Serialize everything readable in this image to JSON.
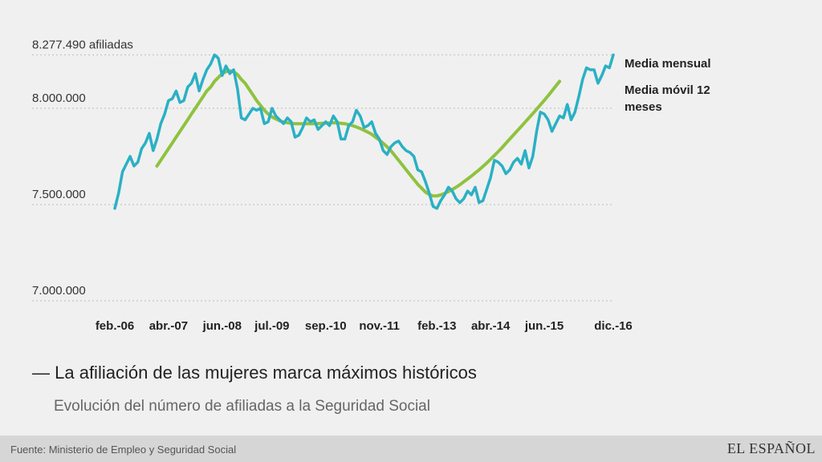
{
  "chart_data": {
    "type": "line",
    "title": "La afiliación de las mujeres marca máximos históricos",
    "title_prefix": "—",
    "subtitle": "Evolución del número de afiliadas a la Seguridad Social",
    "y_ticks": [
      {
        "value": 8277490,
        "label": "8.277.490 afiliadas"
      },
      {
        "value": 8000000,
        "label": "8.000.000"
      },
      {
        "value": 7500000,
        "label": "7.500.000"
      },
      {
        "value": 7000000,
        "label": "7.000.000"
      }
    ],
    "ylim": [
      7000000,
      8277490
    ],
    "x_ticks": [
      "feb.-06",
      "abr.-07",
      "jun.-08",
      "jul.-09",
      "sep.-10",
      "nov.-11",
      "feb.-13",
      "abr.-14",
      "jun.-15",
      "dic.-16"
    ],
    "x_tick_index": [
      0,
      14,
      28,
      41,
      55,
      69,
      84,
      98,
      112,
      130
    ],
    "grid": true,
    "legend_placement": "right, at line ends",
    "series": [
      {
        "name": "Media mensual",
        "color": "#2ab0c5",
        "start_index": 0,
        "values": [
          7480000,
          7560000,
          7670000,
          7710000,
          7750000,
          7700000,
          7720000,
          7790000,
          7820000,
          7870000,
          7780000,
          7840000,
          7920000,
          7970000,
          8040000,
          8050000,
          8090000,
          8030000,
          8040000,
          8110000,
          8130000,
          8180000,
          8090000,
          8150000,
          8200000,
          8230000,
          8277490,
          8260000,
          8170000,
          8220000,
          8180000,
          8200000,
          8100000,
          7950000,
          7940000,
          7970000,
          8000000,
          7990000,
          8000000,
          7920000,
          7930000,
          8000000,
          7960000,
          7940000,
          7920000,
          7950000,
          7930000,
          7850000,
          7860000,
          7900000,
          7950000,
          7930000,
          7940000,
          7890000,
          7910000,
          7930000,
          7910000,
          7960000,
          7930000,
          7840000,
          7840000,
          7910000,
          7930000,
          7990000,
          7960000,
          7900000,
          7910000,
          7930000,
          7870000,
          7840000,
          7780000,
          7760000,
          7800000,
          7820000,
          7830000,
          7800000,
          7780000,
          7770000,
          7750000,
          7680000,
          7670000,
          7620000,
          7560000,
          7490000,
          7480000,
          7520000,
          7550000,
          7590000,
          7570000,
          7530000,
          7510000,
          7530000,
          7570000,
          7550000,
          7590000,
          7510000,
          7520000,
          7580000,
          7640000,
          7730000,
          7720000,
          7700000,
          7660000,
          7680000,
          7720000,
          7740000,
          7710000,
          7780000,
          7690000,
          7750000,
          7880000,
          7980000,
          7970000,
          7940000,
          7880000,
          7920000,
          7960000,
          7950000,
          8020000,
          7940000,
          7980000,
          8060000,
          8150000,
          8210000,
          8200000,
          8200000,
          8130000,
          8170000,
          8220000,
          8210000,
          8277490
        ]
      },
      {
        "name": "Media móvil 12 meses",
        "color": "#8fc23f",
        "start_index": 11,
        "values": [
          7700000,
          7730000,
          7760000,
          7790000,
          7820000,
          7850000,
          7880000,
          7910000,
          7940000,
          7970000,
          8000000,
          8030000,
          8060000,
          8090000,
          8110000,
          8140000,
          8160000,
          8180000,
          8190000,
          8195000,
          8190000,
          8175000,
          8150000,
          8130000,
          8100000,
          8070000,
          8040000,
          8015000,
          7990000,
          7970000,
          7955000,
          7945000,
          7935000,
          7928000,
          7925000,
          7922000,
          7920000,
          7920000,
          7920000,
          7920000,
          7920000,
          7920000,
          7921000,
          7922000,
          7923000,
          7924000,
          7925000,
          7924000,
          7922000,
          7920000,
          7915000,
          7910000,
          7903000,
          7895000,
          7886000,
          7876000,
          7865000,
          7850000,
          7835000,
          7818000,
          7800000,
          7780000,
          7755000,
          7730000,
          7705000,
          7680000,
          7655000,
          7630000,
          7605000,
          7585000,
          7565000,
          7552000,
          7545000,
          7545000,
          7550000,
          7558000,
          7567000,
          7578000,
          7590000,
          7603000,
          7618000,
          7633000,
          7648000,
          7664000,
          7680000,
          7698000,
          7716000,
          7735000,
          7755000,
          7775000,
          7796000,
          7818000,
          7840000,
          7862000,
          7884000,
          7906000,
          7928000,
          7950000,
          7972000,
          7995000,
          8018000,
          8041000,
          8065000,
          8090000,
          8115000,
          8140000
        ]
      }
    ],
    "legend": [
      {
        "lines": [
          "Media mensual"
        ]
      },
      {
        "lines": [
          "Media móvil 12",
          "meses"
        ]
      }
    ]
  },
  "footer": {
    "source": "Fuente: Ministerio de Empleo y Seguridad Social",
    "brand": "EL ESPAÑOL"
  }
}
